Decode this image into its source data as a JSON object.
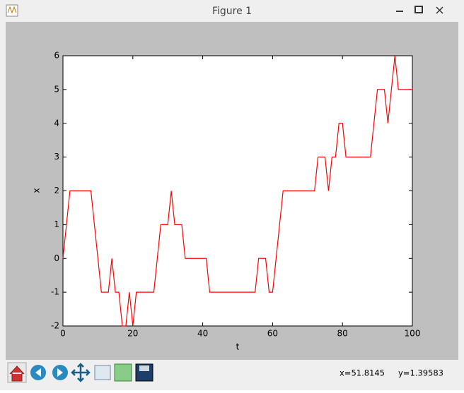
{
  "window": {
    "title": "Figure 1",
    "status_x": "x=51.8145",
    "status_y": "y=1.39583"
  },
  "chart_data": {
    "type": "line",
    "xlabel": "t",
    "ylabel": "x",
    "x": [
      0,
      1,
      2,
      3,
      4,
      5,
      6,
      7,
      8,
      9,
      10,
      11,
      12,
      13,
      14,
      15,
      16,
      17,
      18,
      19,
      20,
      21,
      22,
      23,
      24,
      25,
      26,
      27,
      28,
      29,
      30,
      31,
      32,
      33,
      34,
      35,
      36,
      37,
      38,
      39,
      40,
      41,
      42,
      43,
      44,
      45,
      46,
      47,
      48,
      49,
      50,
      51,
      52,
      53,
      54,
      55,
      56,
      57,
      58,
      59,
      60,
      61,
      62,
      63,
      64,
      65,
      66,
      67,
      68,
      69,
      70,
      71,
      72,
      73,
      74,
      75,
      76,
      77,
      78,
      79,
      80,
      81,
      82,
      83,
      84,
      85,
      86,
      87,
      88,
      89,
      90,
      91,
      92,
      93,
      94,
      95,
      96,
      97,
      98,
      99,
      100
    ],
    "series": [
      {
        "color": "#ff0000",
        "values": [
          0,
          1,
          2,
          2,
          2,
          2,
          2,
          2,
          2,
          1,
          0,
          -1,
          -1,
          -1,
          0,
          -1,
          -1,
          -2,
          -2,
          -1,
          -2,
          -1,
          -1,
          -1,
          -1,
          -1,
          -1,
          0,
          1,
          1,
          1,
          2,
          1,
          1,
          1,
          0,
          0,
          0,
          0,
          0,
          0,
          0,
          -1,
          -1,
          -1,
          -1,
          -1,
          -1,
          -1,
          -1,
          -1,
          -1,
          -1,
          -1,
          -1,
          -1,
          0,
          0,
          0,
          -1,
          -1,
          0,
          1,
          2,
          2,
          2,
          2,
          2,
          2,
          2,
          2,
          2,
          2,
          3,
          3,
          3,
          2,
          3,
          3,
          4,
          4,
          3,
          3,
          3,
          3,
          3,
          3,
          3,
          3,
          4,
          5,
          5,
          5,
          4,
          5,
          6,
          5,
          5,
          5,
          5,
          5
        ]
      }
    ],
    "xlim": [
      0,
      100
    ],
    "xticks": [
      0,
      20,
      40,
      60,
      80,
      100
    ],
    "ylim": [
      -2,
      6
    ],
    "yticks": [
      -2,
      -1,
      0,
      1,
      2,
      3,
      4,
      5,
      6
    ]
  }
}
